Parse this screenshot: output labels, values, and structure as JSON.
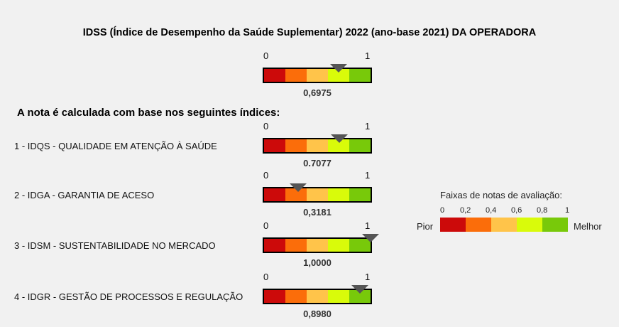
{
  "title": "IDSS (Índice de Desempenho da Saúde Suplementar) 2022 (ano-base 2021) DA OPERADORA",
  "subtitle": "A nota é calculada com base nos seguintes índices:",
  "scale": {
    "min_label": "0",
    "max_label": "1"
  },
  "band_colors": [
    "#cc0a0a",
    "#fb6d0a",
    "#ffc44a",
    "#d9fb0a",
    "#78c90a"
  ],
  "overall": {
    "value": 0.6975,
    "value_label": "0,6975"
  },
  "indices": [
    {
      "label": "1 - IDQS - QUALIDADE EM ATENÇÃO À SAÚDE",
      "value": 0.7077,
      "value_label": "0.7077"
    },
    {
      "label": "2 - IDGA - GARANTIA DE ACESO",
      "value": 0.3181,
      "value_label": "0,3181"
    },
    {
      "label": "3 - IDSM - SUSTENTABILIDADE NO MERCADO",
      "value": 1.0,
      "value_label": "1,0000"
    },
    {
      "label": "4 - IDGR - GESTÃO DE PROCESSOS E REGULAÇÃO",
      "value": 0.898,
      "value_label": "0,8980"
    }
  ],
  "legend": {
    "title": "Faixas de notas de avaliação:",
    "ticks": [
      "0",
      "0,2",
      "0,4",
      "0,6",
      "0,8",
      "1"
    ],
    "worst_label": "Pior",
    "best_label": "Melhor"
  },
  "chart_data": {
    "type": "gauge",
    "range": [
      0,
      1
    ],
    "bands": [
      [
        0,
        0.2
      ],
      [
        0.2,
        0.4
      ],
      [
        0.4,
        0.6
      ],
      [
        0.6,
        0.8
      ],
      [
        0.8,
        1
      ]
    ],
    "categories": [
      "IDSS",
      "IDQS",
      "IDGA",
      "IDSM",
      "IDGR"
    ],
    "values": [
      0.6975,
      0.7077,
      0.3181,
      1.0,
      0.898
    ]
  }
}
